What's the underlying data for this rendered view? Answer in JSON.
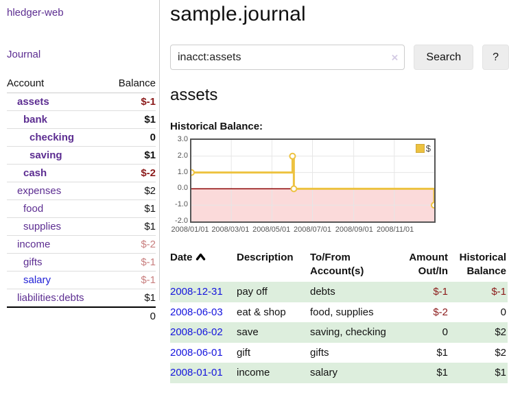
{
  "brand": "hledger-web",
  "sidebar": {
    "journal_link": "Journal",
    "accounts_table": {
      "headers": [
        "Account",
        "Balance"
      ],
      "rows": [
        {
          "name": "assets",
          "balance": "$-1",
          "level": 1,
          "emphasis": true,
          "balance_tone": "negative"
        },
        {
          "name": "bank",
          "balance": "$1",
          "level": 2,
          "emphasis": true,
          "balance_tone": "normal"
        },
        {
          "name": "checking",
          "balance": "0",
          "level": 3,
          "emphasis": true,
          "balance_tone": "normal"
        },
        {
          "name": "saving",
          "balance": "$1",
          "level": 3,
          "emphasis": true,
          "balance_tone": "normal"
        },
        {
          "name": "cash",
          "balance": "$-2",
          "level": 2,
          "emphasis": true,
          "balance_tone": "negative"
        },
        {
          "name": "expenses",
          "balance": "$2",
          "level": 1,
          "emphasis": false,
          "balance_tone": "normal"
        },
        {
          "name": "food",
          "balance": "$1",
          "level": 2,
          "emphasis": false,
          "balance_tone": "normal"
        },
        {
          "name": "supplies",
          "balance": "$1",
          "level": 2,
          "emphasis": false,
          "balance_tone": "normal"
        },
        {
          "name": "income",
          "balance": "$-2",
          "level": 1,
          "emphasis": false,
          "balance_tone": "negative-soft"
        },
        {
          "name": "gifts",
          "balance": "$-1",
          "level": 2,
          "emphasis": false,
          "balance_tone": "negative-soft"
        },
        {
          "name": "salary",
          "balance": "$-1",
          "level": 2,
          "emphasis": false,
          "balance_tone": "negative-soft",
          "link_tone": "blue"
        },
        {
          "name": "liabilities:debts",
          "balance": "$1",
          "level": 1,
          "emphasis": false,
          "balance_tone": "normal"
        }
      ],
      "total": "0"
    }
  },
  "header": {
    "title": "sample.journal"
  },
  "search": {
    "query": "inacct:assets",
    "clear_icon": "×",
    "search_label": "Search",
    "help_label": "?"
  },
  "account_page": {
    "heading": "assets",
    "chart_label": "Historical Balance:"
  },
  "chart_data": {
    "type": "line",
    "title": "Historical Balance:",
    "series": [
      {
        "name": "$",
        "step": true,
        "color": "#edc240",
        "marker_fill": "#ffffff",
        "points": [
          [
            "2008-01-01",
            1
          ],
          [
            "2008-06-01",
            2
          ],
          [
            "2008-06-03",
            0
          ],
          [
            "2008-12-31",
            -1
          ]
        ]
      }
    ],
    "xlim": [
      "2008-01-01",
      "2008-12-31"
    ],
    "ylim": [
      -2,
      3
    ],
    "x_ticks": [
      "2008/01/01",
      "2008/03/01",
      "2008/05/01",
      "2008/07/01",
      "2008/09/01",
      "2008/11/01"
    ],
    "y_ticks": [
      "3.0",
      "2.0",
      "1.0",
      "0.0",
      "-1.0",
      "-2.0"
    ],
    "grid": true,
    "grid_color": "#e6e6e6",
    "border_color": "#545454",
    "zero_line_color": "#8b0000",
    "negative_region_fill": "#fbdada",
    "legend_position": "top-right",
    "legend_label": "$"
  },
  "register_table": {
    "headers": [
      "Date",
      "Description",
      "To/From Account(s)",
      "Amount Out/In",
      "Historical Balance"
    ],
    "sort": {
      "column": "Date",
      "direction": "asc"
    },
    "rows": [
      {
        "date": "2008-12-31",
        "description": "pay off",
        "accounts": "debts",
        "amount": "$-1",
        "balance": "$-1",
        "amount_tone": "negative",
        "balance_tone": "negative"
      },
      {
        "date": "2008-06-03",
        "description": "eat & shop",
        "accounts": "food, supplies",
        "amount": "$-2",
        "balance": "0",
        "amount_tone": "negative",
        "balance_tone": "normal"
      },
      {
        "date": "2008-06-02",
        "description": "save",
        "accounts": "saving, checking",
        "amount": "0",
        "balance": "$2",
        "amount_tone": "normal",
        "balance_tone": "normal"
      },
      {
        "date": "2008-06-01",
        "description": "gift",
        "accounts": "gifts",
        "amount": "$1",
        "balance": "$2",
        "amount_tone": "normal",
        "balance_tone": "normal"
      },
      {
        "date": "2008-01-01",
        "description": "income",
        "accounts": "salary",
        "amount": "$1",
        "balance": "$1",
        "amount_tone": "normal",
        "balance_tone": "normal"
      }
    ]
  }
}
